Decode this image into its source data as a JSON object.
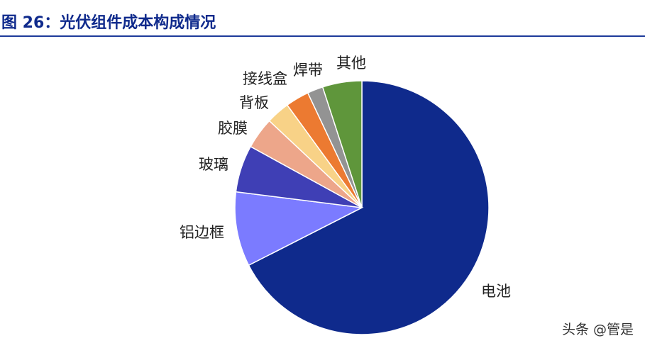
{
  "title": "图 26：光伏组件成本构成情况",
  "watermark": "头条 @管是",
  "chart_data": {
    "type": "pie",
    "title": "图 26：光伏组件成本构成情况",
    "start": "top",
    "direction": "clockwise",
    "slices": [
      {
        "label": "电池",
        "value": 67.5,
        "color": "#0f2a8c"
      },
      {
        "label": "铝边框",
        "value": 9.5,
        "color": "#7b7bff"
      },
      {
        "label": "玻璃",
        "value": 6.0,
        "color": "#3f3fb5"
      },
      {
        "label": "胶膜",
        "value": 4.0,
        "color": "#eda68a"
      },
      {
        "label": "背板",
        "value": 3.0,
        "color": "#f8d287"
      },
      {
        "label": "接线盒",
        "value": 3.0,
        "color": "#ec7a31"
      },
      {
        "label": "焊带",
        "value": 2.0,
        "color": "#939393"
      },
      {
        "label": "其他",
        "value": 5.0,
        "color": "#5f963b"
      }
    ]
  }
}
